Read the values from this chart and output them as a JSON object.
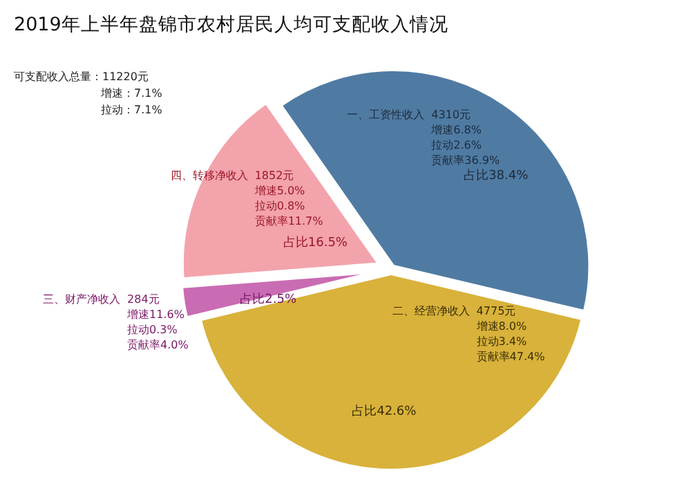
{
  "chart_data": {
    "type": "pie",
    "title": "2019年上半年盘锦市农村居民人均可支配收入情况",
    "categories": [
      "一、工资性收入",
      "二、经营净收入",
      "三、财产净收入",
      "四、转移净收入"
    ],
    "values": [
      4310,
      4775,
      284,
      1852
    ],
    "value_labels": [
      "4310元",
      "4775元",
      "284元",
      "1852元"
    ],
    "colors": [
      "#4f7ba3",
      "#d8b23a",
      "#c96cb3",
      "#f3a3ab"
    ],
    "legend": false,
    "annotations": [
      "可支配收入总量：11220元",
      "增速：7.1%",
      "拉动：7.1%",
      {
        "text": "增速6.8%",
        "x": "一、工资性收入"
      },
      {
        "text": "拉动2.6%",
        "x": "一、工资性收入"
      },
      {
        "text": "贡献率36.9%",
        "x": "一、工资性收入"
      },
      {
        "text": "占比38.4%",
        "x": "一、工资性收入"
      },
      {
        "text": "增速8.0%",
        "x": "二、经营净收入"
      },
      {
        "text": "拉动3.4%",
        "x": "二、经营净收入"
      },
      {
        "text": "贡献率47.4%",
        "x": "二、经营净收入"
      },
      {
        "text": "占比42.6%",
        "x": "二、经营净收入"
      },
      {
        "text": "增速11.6%",
        "x": "三、财产净收入"
      },
      {
        "text": "拉动0.3%",
        "x": "三、财产净收入"
      },
      {
        "text": "贡献率4.0%",
        "x": "三、财产净收入"
      },
      {
        "text": "占比2.5%",
        "x": "三、财产净收入"
      },
      {
        "text": "增速5.0%",
        "x": "四、转移净收入"
      },
      {
        "text": "拉动0.8%",
        "x": "四、转移净收入"
      },
      {
        "text": "贡献率11.7%",
        "x": "四、转移净收入"
      },
      {
        "text": "占比16.5%",
        "x": "四、转移净收入"
      }
    ]
  }
}
